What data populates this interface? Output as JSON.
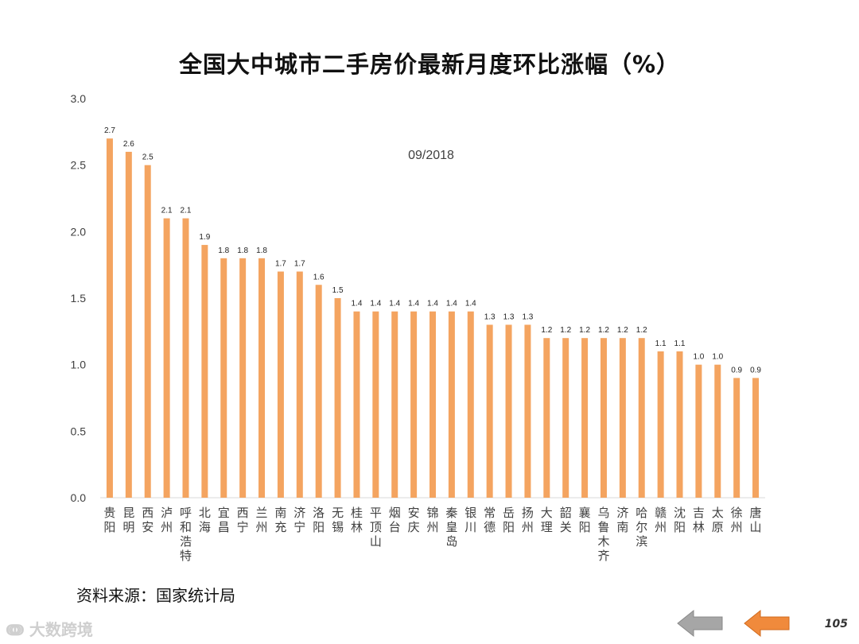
{
  "title": "全国大中城市二手房价最新月度环比涨幅（%）",
  "source_text": "资料来源：国家统计局",
  "watermark_text": "大数跨境",
  "page_number": "105",
  "colors": {
    "bar": "#f4a460",
    "axis": "#d9d9d9",
    "text": "#404040",
    "nav_prev": "#a6a6a6",
    "nav_next": "#f08a3c"
  },
  "chart_data": {
    "type": "bar",
    "title": "全国大中城市二手房价最新月度环比涨幅（%）",
    "annotation": "09/2018",
    "xlabel": "",
    "ylabel": "",
    "ylim": [
      0,
      3.0
    ],
    "yticks": [
      "0.0",
      "0.5",
      "1.0",
      "1.5",
      "2.0",
      "2.5",
      "3.0"
    ],
    "grid": false,
    "categories": [
      "贵阳",
      "昆明",
      "西安",
      "泸州",
      "呼和浩特",
      "北海",
      "宜昌",
      "西宁",
      "兰州",
      "南充",
      "济宁",
      "洛阳",
      "无锡",
      "桂林",
      "平顶山",
      "烟台",
      "安庆",
      "锦州",
      "秦皇岛",
      "银川",
      "常德",
      "岳阳",
      "扬州",
      "大理",
      "韶关",
      "襄阳",
      "乌鲁木齐",
      "济南",
      "哈尔滨",
      "赣州",
      "沈阳",
      "吉林",
      "太原",
      "徐州",
      "唐山"
    ],
    "values": [
      2.7,
      2.6,
      2.5,
      2.1,
      2.1,
      1.9,
      1.8,
      1.8,
      1.8,
      1.7,
      1.7,
      1.6,
      1.5,
      1.4,
      1.4,
      1.4,
      1.4,
      1.4,
      1.4,
      1.4,
      1.3,
      1.3,
      1.3,
      1.2,
      1.2,
      1.2,
      1.2,
      1.2,
      1.2,
      1.1,
      1.1,
      1.0,
      1.0,
      0.9,
      0.9
    ],
    "labels": [
      "2.7",
      "2.6",
      "2.5",
      "2.1",
      "2.1",
      "1.9",
      "1.8",
      "1.8",
      "1.8",
      "1.7",
      "1.7",
      "1.6",
      "1.5",
      "1.4",
      "1.4",
      "1.4",
      "1.4",
      "1.4",
      "1.4",
      "1.4",
      "1.3",
      "1.3",
      "1.3",
      "1.2",
      "1.2",
      "1.2",
      "1.2",
      "1.2",
      "1.2",
      "1.1",
      "1.1",
      "1.0",
      "1.0",
      "0.9",
      "0.9"
    ]
  }
}
